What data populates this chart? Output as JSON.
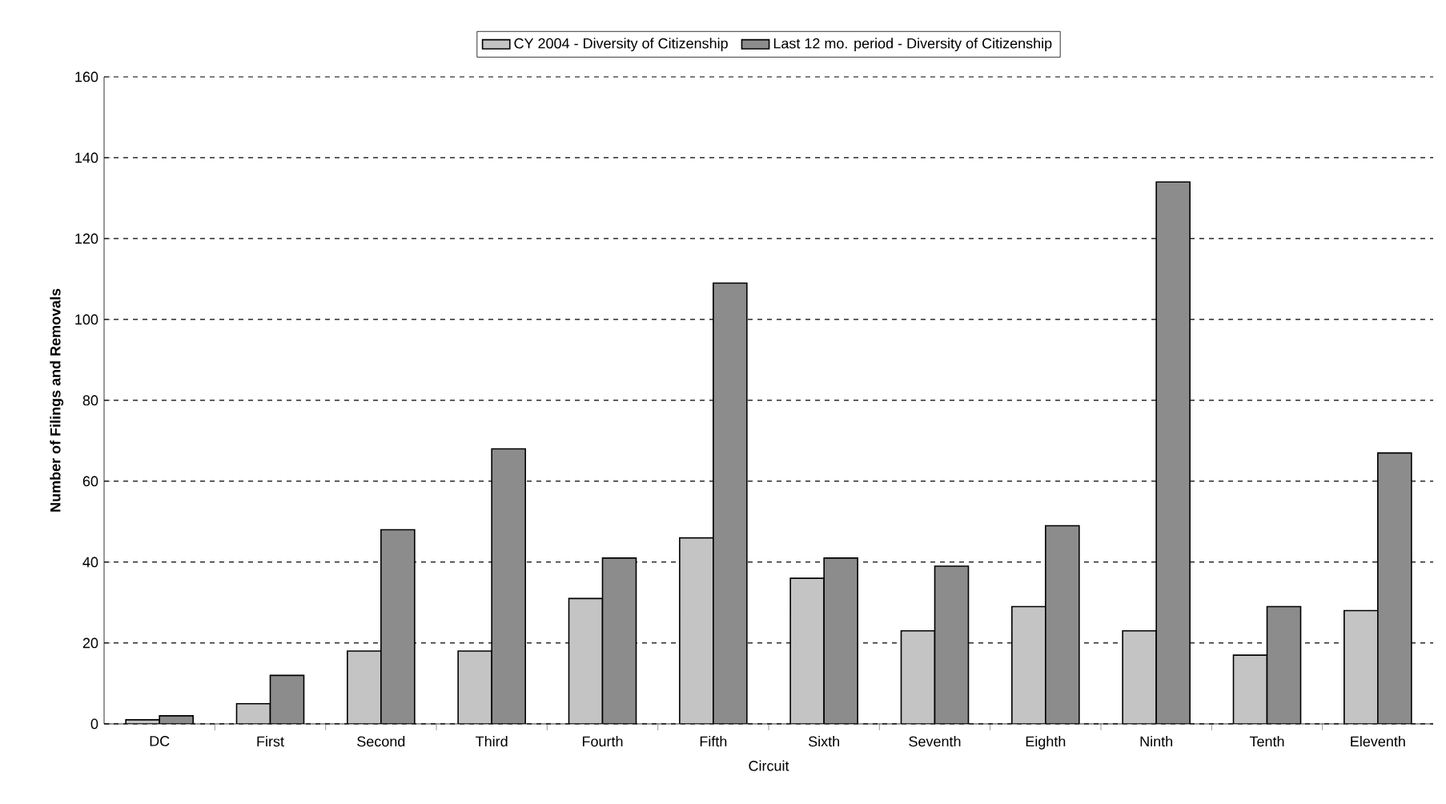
{
  "chart_data": {
    "type": "bar",
    "xlabel": "Circuit",
    "ylabel": "Number of Filings and Removals",
    "categories": [
      "DC",
      "First",
      "Second",
      "Third",
      "Fourth",
      "Fifth",
      "Sixth",
      "Seventh",
      "Eighth",
      "Ninth",
      "Tenth",
      "Eleventh"
    ],
    "series": [
      {
        "name": "CY 2004 - Diversity of Citizenship",
        "color": "#c4c4c4",
        "values": [
          1,
          5,
          18,
          18,
          31,
          46,
          36,
          23,
          29,
          23,
          17,
          28
        ]
      },
      {
        "name": "Last 12 mo. period - Diversity of Citizenship",
        "color": "#8c8c8c",
        "values": [
          2,
          12,
          48,
          68,
          41,
          109,
          41,
          39,
          49,
          134,
          29,
          67
        ]
      }
    ],
    "ylim": [
      0,
      160
    ],
    "yticks": [
      0,
      20,
      40,
      60,
      80,
      100,
      120,
      140,
      160
    ],
    "grid": "y",
    "legend": "top"
  }
}
